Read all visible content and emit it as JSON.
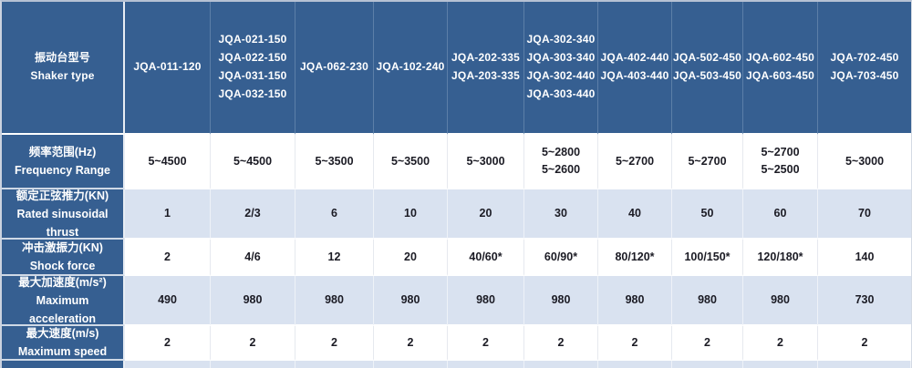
{
  "table": {
    "corner": {
      "zh": "振动台型号",
      "en": "Shaker type"
    },
    "columns": [
      {
        "models": "JQA-011-120"
      },
      {
        "models": "JQA-021-150\nJQA-022-150\nJQA-031-150\nJQA-032-150"
      },
      {
        "models": "JQA-062-230"
      },
      {
        "models": "JQA-102-240"
      },
      {
        "models": "JQA-202-335\nJQA-203-335"
      },
      {
        "models": "JQA-302-340\nJQA-303-340\nJQA-302-440\nJQA-303-440"
      },
      {
        "models": "JQA-402-440\nJQA-403-440"
      },
      {
        "models": "JQA-502-450\nJQA-503-450"
      },
      {
        "models": "JQA-602-450\nJQA-603-450"
      },
      {
        "models": "JQA-702-450\nJQA-703-450"
      }
    ],
    "rows": [
      {
        "label_zh": "频率范围(Hz)",
        "label_en": "Frequency Range",
        "values": [
          "5~4500",
          "5~4500",
          "5~3500",
          "5~3500",
          "5~3000",
          "5~2800\n5~2600",
          "5~2700",
          "5~2700",
          "5~2700\n5~2500",
          "5~3000"
        ]
      },
      {
        "label_zh": "额定正弦推力(KN)",
        "label_en": "Rated sinusoidal thrust",
        "values": [
          "1",
          "2/3",
          "6",
          "10",
          "20",
          "30",
          "40",
          "50",
          "60",
          "70"
        ]
      },
      {
        "label_zh": "冲击激振力(KN)",
        "label_en": "Shock force",
        "values": [
          "2",
          "4/6",
          "12",
          "20",
          "40/60*",
          "60/90*",
          "80/120*",
          "100/150*",
          "120/180*",
          "140"
        ]
      },
      {
        "label_zh": "最大加速度(m/s²)",
        "label_en": "Maximum acceleration",
        "values": [
          "490",
          "980",
          "980",
          "980",
          "980",
          "980",
          "980",
          "980",
          "980",
          "730"
        ]
      },
      {
        "label_zh": "最大速度(m/s)",
        "label_en": "Maximum speed",
        "values": [
          "2",
          "2",
          "2",
          "2",
          "2",
          "2",
          "2",
          "2",
          "2",
          "2"
        ]
      }
    ],
    "colors": {
      "header_blue": "#365f91",
      "light_row": "#d9e2f0",
      "white_row": "#ffffff",
      "text_dark": "#1b1b24"
    }
  }
}
